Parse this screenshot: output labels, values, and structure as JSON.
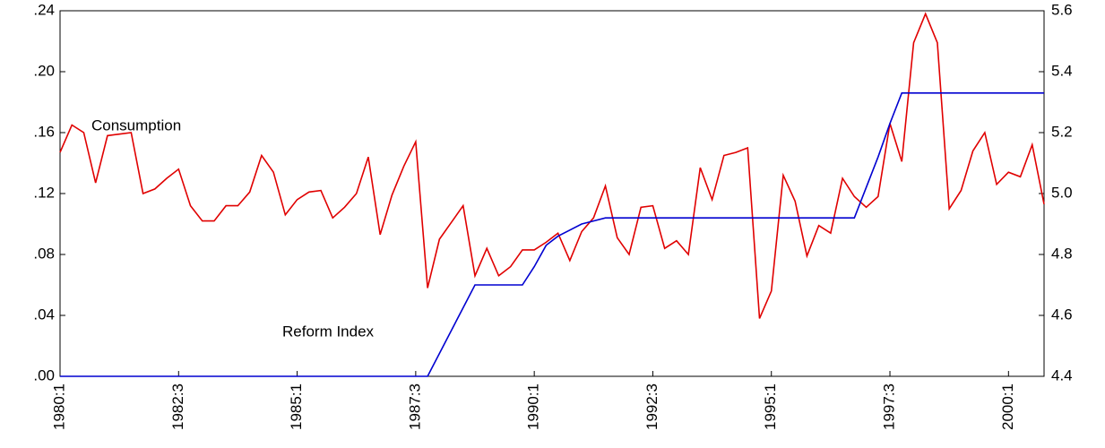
{
  "chart_data": {
    "type": "line",
    "categories": [
      "1980:1",
      null,
      null,
      null,
      null,
      null,
      null,
      null,
      null,
      null,
      "1982:3",
      null,
      null,
      null,
      null,
      null,
      null,
      null,
      null,
      null,
      "1985:1",
      null,
      null,
      null,
      null,
      null,
      null,
      null,
      null,
      null,
      "1987:3",
      null,
      null,
      null,
      null,
      null,
      null,
      null,
      null,
      null,
      "1990:1",
      null,
      null,
      null,
      null,
      null,
      null,
      null,
      null,
      null,
      "1992:3",
      null,
      null,
      null,
      null,
      null,
      null,
      null,
      null,
      null,
      "1995:1",
      null,
      null,
      null,
      null,
      null,
      null,
      null,
      null,
      null,
      "1997:3",
      null,
      null,
      null,
      null,
      null,
      null,
      null,
      null,
      null,
      "2000:1",
      null,
      null,
      null
    ],
    "ylim": [
      0,
      0.24
    ],
    "yticks": [
      {
        "value": 0,
        "label": ".00"
      },
      {
        "value": 0.04,
        "label": ".04"
      },
      {
        "value": 0.08,
        "label": ".08"
      },
      {
        "value": 0.12,
        "label": ".12"
      },
      {
        "value": 0.16,
        "label": ".16"
      },
      {
        "value": 0.2,
        "label": ".20"
      },
      {
        "value": 0.24,
        "label": ".24"
      }
    ],
    "y2lim": [
      4.4,
      5.6
    ],
    "y2ticks": [
      4.4,
      4.6,
      4.8,
      {
        "value": 5.0,
        "label": "5.0"
      },
      5.2,
      5.4,
      5.6
    ],
    "series": [
      {
        "name": "Consumption",
        "color": "#e00000",
        "values": [
          0.147,
          0.165,
          0.16,
          0.127,
          0.158,
          0.159,
          0.16,
          0.12,
          0.123,
          0.13,
          0.136,
          0.112,
          0.102,
          0.102,
          0.112,
          0.112,
          0.121,
          0.145,
          0.134,
          0.106,
          0.116,
          0.121,
          0.122,
          0.104,
          0.111,
          0.12,
          0.144,
          0.093,
          0.119,
          0.138,
          0.154,
          0.058,
          0.09,
          0.101,
          0.112,
          0.066,
          0.084,
          0.066,
          0.072,
          0.083,
          0.083,
          0.088,
          0.094,
          0.076,
          0.095,
          0.104,
          0.125,
          0.091,
          0.08,
          0.111,
          0.112,
          0.084,
          0.089,
          0.08,
          0.137,
          0.116,
          0.145,
          0.147,
          0.15,
          0.038,
          0.056,
          0.132,
          0.115,
          0.079,
          0.099,
          0.094,
          0.13,
          0.118,
          0.111,
          0.118,
          0.166,
          0.141,
          0.219,
          0.238,
          0.219,
          0.11,
          0.122,
          0.148,
          0.16,
          0.126,
          0.134,
          0.131,
          0.152,
          0.113
        ]
      },
      {
        "name": "Reform Index",
        "color": "#0000d0",
        "axis": "y2",
        "values": [
          4.4,
          4.4,
          4.4,
          4.4,
          4.4,
          4.4,
          4.4,
          4.4,
          4.4,
          4.4,
          4.4,
          4.4,
          4.4,
          4.4,
          4.4,
          4.4,
          4.4,
          4.4,
          4.4,
          4.4,
          4.4,
          4.4,
          4.4,
          4.4,
          4.4,
          4.4,
          4.4,
          4.4,
          4.4,
          4.4,
          4.4,
          4.4,
          4.475,
          4.55,
          4.625,
          4.7,
          4.7,
          4.7,
          4.7,
          4.7,
          4.76,
          4.83,
          4.86,
          4.88,
          4.9,
          4.91,
          4.92,
          4.92,
          4.92,
          4.92,
          4.92,
          4.92,
          4.92,
          4.92,
          4.92,
          4.92,
          4.92,
          4.92,
          4.92,
          4.92,
          4.92,
          4.92,
          4.92,
          4.92,
          4.92,
          4.92,
          4.92,
          4.92,
          5.02,
          5.12,
          5.23,
          5.33,
          5.33,
          5.33,
          5.33,
          5.33,
          5.33,
          5.33,
          5.33,
          5.33,
          5.33,
          5.33,
          5.33,
          5.33
        ]
      }
    ]
  }
}
